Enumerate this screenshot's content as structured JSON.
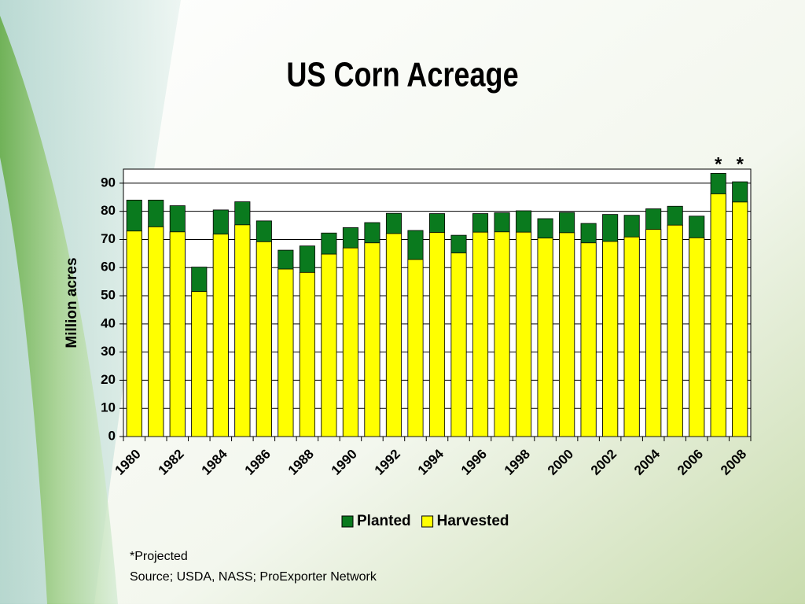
{
  "chart_data": {
    "type": "bar",
    "title": "US Corn Acreage",
    "y_label": "Million acres",
    "categories": [
      "1980",
      null,
      "1982",
      null,
      "1984",
      null,
      "1986",
      null,
      "1988",
      null,
      "1990",
      null,
      "1992",
      null,
      "1994",
      null,
      "1996",
      null,
      "1998",
      null,
      "2000",
      null,
      "2002",
      null,
      "2004",
      null,
      "2006",
      null,
      "2008"
    ],
    "series": [
      {
        "name": "Planted",
        "color": "#0a7a1e",
        "values": [
          84,
          84,
          82,
          60.2,
          80.5,
          83.4,
          76.6,
          66.2,
          67.7,
          72.3,
          74.2,
          76,
          79.3,
          73.2,
          79.2,
          71.5,
          79.2,
          79.5,
          80.2,
          77.4,
          79.6,
          75.7,
          78.9,
          78.6,
          80.9,
          81.8,
          78.3,
          93.5,
          90.5
        ]
      },
      {
        "name": "Harvested",
        "color": "#ffff00",
        "values": [
          73,
          74.5,
          72.7,
          51.5,
          71.9,
          75.2,
          69.2,
          59.5,
          58.3,
          64.8,
          67,
          68.8,
          72.1,
          62.9,
          72.5,
          65.2,
          72.6,
          72.7,
          72.6,
          70.5,
          72.4,
          68.8,
          69.3,
          70.9,
          73.6,
          75.1,
          70.6,
          86.2,
          83.3
        ]
      }
    ],
    "annotations": [
      {
        "category_index": 27,
        "text": "*"
      },
      {
        "category_index": 28,
        "text": "*"
      }
    ],
    "ylim": [
      0,
      95
    ],
    "yticks": [
      0,
      10,
      20,
      30,
      40,
      50,
      60,
      70,
      80,
      90
    ],
    "grid": true,
    "legend": "bottom",
    "footnotes": [
      "*Projected",
      "Source; USDA, NASS; ProExporter Network"
    ]
  }
}
